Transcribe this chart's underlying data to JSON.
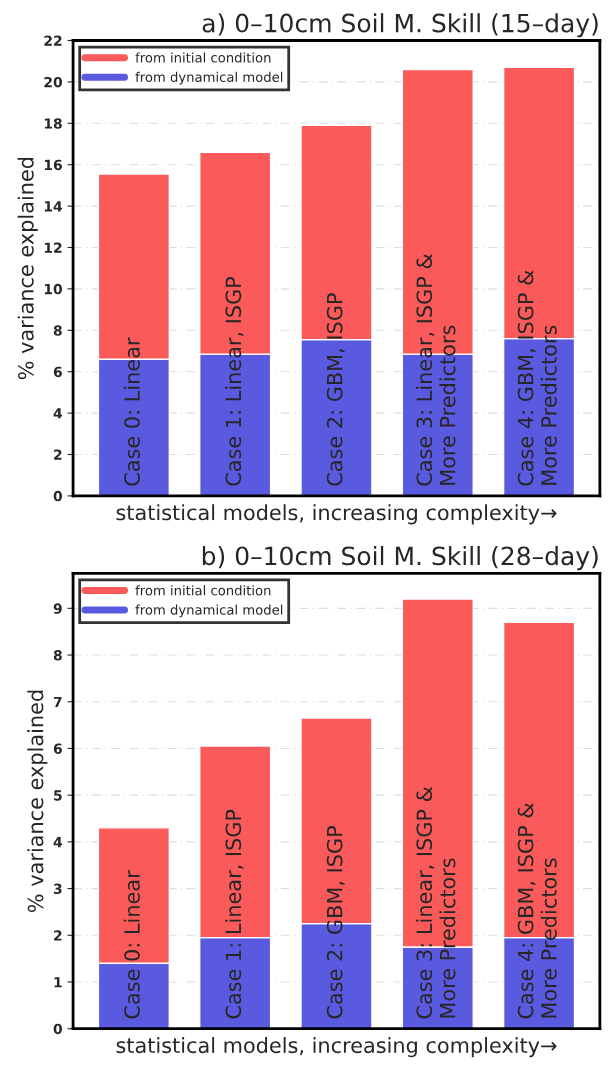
{
  "chart_data": [
    {
      "type": "bar",
      "title": "a) 0–10cm Soil M. Skill (15–day)",
      "xlabel": "statistical models, increasing complexity→",
      "ylabel": "% variance explained",
      "categories": [
        "Case 0: Linear",
        "Case 1: Linear, ISGP",
        "Case 2: GBM, ISGP",
        "Case 3: Linear, ISGP &\nMore Predictors",
        "Case 4: GBM, ISGP &\nMore Predictors"
      ],
      "stacked": true,
      "series": [
        {
          "name": "from dynamical model",
          "color": "#5a5ae0",
          "values": [
            6.6,
            6.85,
            7.55,
            6.85,
            7.6
          ]
        },
        {
          "name": "from initial condition",
          "color": "#fa5a5a",
          "values": [
            8.95,
            9.75,
            10.35,
            13.75,
            13.1
          ]
        }
      ],
      "ylim": [
        0,
        22
      ],
      "yticks": [
        0,
        2,
        4,
        6,
        8,
        10,
        12,
        14,
        16,
        18,
        20,
        22
      ],
      "grid": "y",
      "legend": "top left"
    },
    {
      "type": "bar",
      "title": "b) 0–10cm Soil M. Skill (28–day)",
      "xlabel": "statistical models, increasing complexity→",
      "ylabel": "% variance explained",
      "categories": [
        "Case 0: Linear",
        "Case 1: Linear, ISGP",
        "Case 2: GBM, ISGP",
        "Case 3: Linear, ISGP &\nMore Predictors",
        "Case 4: GBM, ISGP &\nMore Predictors"
      ],
      "stacked": true,
      "series": [
        {
          "name": "from dynamical model",
          "color": "#5a5ae0",
          "values": [
            1.4,
            1.95,
            2.25,
            1.75,
            1.95
          ]
        },
        {
          "name": "from initial condition",
          "color": "#fa5a5a",
          "values": [
            2.9,
            4.1,
            4.4,
            7.45,
            6.75
          ]
        }
      ],
      "ylim": [
        0,
        9.75
      ],
      "yticks": [
        0,
        1,
        2,
        3,
        4,
        5,
        6,
        7,
        8,
        9
      ],
      "grid": "y",
      "legend": "top left"
    }
  ]
}
